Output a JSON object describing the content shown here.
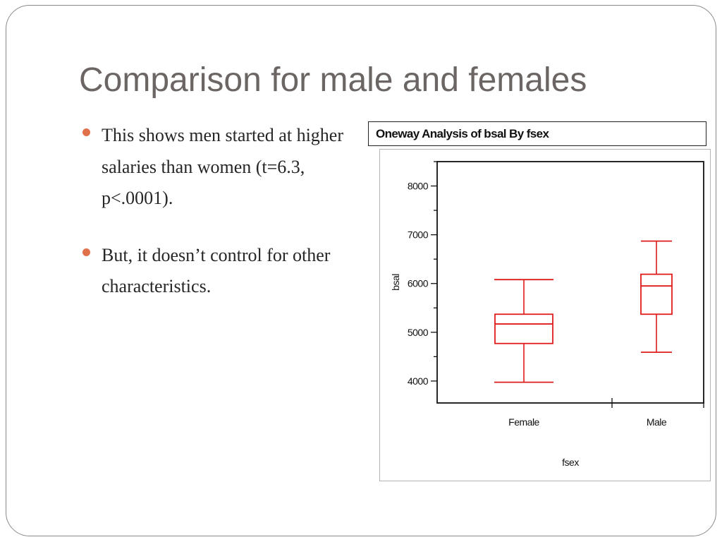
{
  "slide": {
    "title": "Comparison for male and females",
    "bullets": [
      "This shows men started at higher salaries than women (t=6.3, p<.0001).",
      "But, it doesn’t control for other characteristics."
    ]
  },
  "colors": {
    "title": "#6b6563",
    "bullet_dot": "#e0704a",
    "box": "#e01b1b",
    "axis": "#111111"
  },
  "chart_data": {
    "type": "boxplot",
    "title": "Oneway Analysis of bsal By fsex",
    "xlabel": "fsex",
    "ylabel": "bsal",
    "categories": [
      "Female",
      "Male"
    ],
    "ylim": [
      3550,
      8500
    ],
    "yticks": [
      4000,
      5000,
      6000,
      7000,
      8000
    ],
    "boxes": [
      {
        "category": "Female",
        "min": 3975,
        "q1": 4770,
        "median": 5170,
        "q3": 5370,
        "max": 6080
      },
      {
        "category": "Male",
        "min": 4590,
        "q1": 5370,
        "median": 5950,
        "q3": 6190,
        "max": 6870
      }
    ],
    "grid": false,
    "legend": "none"
  }
}
